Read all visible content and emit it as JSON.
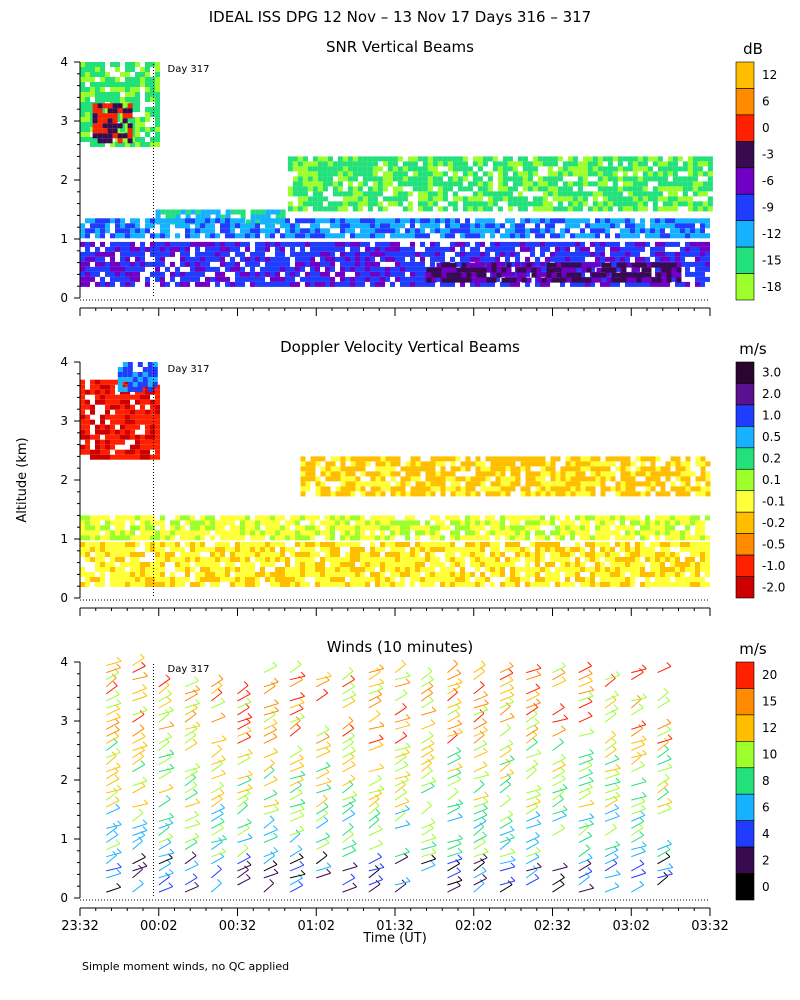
{
  "figure": {
    "title": "IDEAL ISS DPG  12 Nov – 13 Nov 17 Days 316 – 317",
    "y_axis_label": "Altitude (km)",
    "x_axis_label": "Time (UT)",
    "footnote": "Simple moment winds, no QC applied",
    "day_marker_label": "Day 317"
  },
  "chart_data": [
    {
      "type": "heatmap",
      "title": "SNR Vertical Beams",
      "ylabel": "",
      "xlabel": "",
      "ylim": [
        0,
        4
      ],
      "y_ticks": [
        "0",
        "1",
        "2",
        "3",
        "4"
      ],
      "x_ticks": [],
      "day_marker_time": "00:00",
      "colorbar": {
        "unit": "dB",
        "labels": [
          "12",
          "6",
          "0",
          "-3",
          "-6",
          "-9",
          "-12",
          "-15",
          "-18"
        ],
        "colors": [
          "#ffbf00",
          "#ff8c00",
          "#ff2000",
          "#3a0a50",
          "#6f00c4",
          "#1f3cff",
          "#17b2ff",
          "#22e07a",
          "#9cff2c"
        ]
      },
      "regions": [
        {
          "t0": 0.0,
          "t1": 0.12,
          "z0": 2.6,
          "z1": 4.0,
          "level": "-15"
        },
        {
          "t0": 0.02,
          "t1": 0.08,
          "z0": 2.7,
          "z1": 3.3,
          "level": "-3"
        },
        {
          "t0": 0.12,
          "t1": 0.33,
          "z0": 1.3,
          "z1": 1.5,
          "level": "-15"
        },
        {
          "t0": 0.33,
          "t1": 1.0,
          "z0": 1.5,
          "z1": 2.4,
          "level": "-15"
        },
        {
          "t0": 0.0,
          "t1": 1.0,
          "z0": 1.05,
          "z1": 1.35,
          "level": "-12"
        },
        {
          "t0": 0.0,
          "t1": 1.0,
          "z0": 0.25,
          "z1": 0.95,
          "level": "-9"
        },
        {
          "t0": 0.55,
          "t1": 0.95,
          "z0": 0.3,
          "z1": 0.6,
          "level": "-3"
        }
      ]
    },
    {
      "type": "heatmap",
      "title": "Doppler Velocity Vertical Beams",
      "ylabel": "Altitude (km)",
      "xlabel": "",
      "ylim": [
        0,
        4
      ],
      "y_ticks": [
        "0",
        "1",
        "2",
        "3",
        "4"
      ],
      "x_ticks": [],
      "day_marker_time": "00:00",
      "colorbar": {
        "unit": "m/s",
        "labels": [
          "3.0",
          "2.0",
          "1.0",
          "0.5",
          "0.2",
          "0.1",
          "-0.1",
          "-0.2",
          "-0.5",
          "-1.0",
          "-2.0"
        ],
        "colors": [
          "#2b0530",
          "#5a1090",
          "#1f3cff",
          "#17b2ff",
          "#22e07a",
          "#9cff2c",
          "#ffff3a",
          "#ffbf00",
          "#ff8c00",
          "#ff2000",
          "#cc0000"
        ]
      },
      "regions": [
        {
          "t0": 0.0,
          "t1": 0.12,
          "z0": 2.4,
          "z1": 3.7,
          "level": "-1.0"
        },
        {
          "t0": 0.06,
          "t1": 0.12,
          "z0": 3.5,
          "z1": 4.0,
          "level": "1.0"
        },
        {
          "t0": 0.35,
          "t1": 1.0,
          "z0": 1.8,
          "z1": 2.4,
          "level": "-0.2"
        },
        {
          "t0": 0.0,
          "t1": 1.0,
          "z0": 1.0,
          "z1": 1.4,
          "level": "-0.1"
        },
        {
          "t0": 0.0,
          "t1": 1.0,
          "z0": 0.25,
          "z1": 0.95,
          "level": "-0.1"
        }
      ]
    },
    {
      "type": "scatter",
      "title": "Winds (10 minutes)",
      "ylabel": "",
      "xlabel": "Time (UT)",
      "ylim": [
        0,
        4
      ],
      "y_ticks": [
        "0",
        "1",
        "2",
        "3",
        "4"
      ],
      "x_ticks": [
        "23:32",
        "00:02",
        "00:32",
        "01:02",
        "01:32",
        "02:02",
        "02:32",
        "03:02",
        "03:32"
      ],
      "day_marker_time": "00:00",
      "colorbar": {
        "unit": "m/s",
        "labels": [
          "20",
          "15",
          "12",
          "10",
          "8",
          "6",
          "4",
          "2",
          "0"
        ],
        "colors": [
          "#ff2000",
          "#ff8c00",
          "#ffbf00",
          "#9cff2c",
          "#22e07a",
          "#17b2ff",
          "#1f3cff",
          "#3a0a50",
          "#000000"
        ]
      },
      "wind_profiles_minutes_after_2332": [
        10,
        20,
        30,
        40,
        50,
        60,
        70,
        80,
        90,
        100,
        110,
        120,
        130,
        140,
        150,
        160,
        170,
        180,
        190,
        200,
        210,
        220
      ]
    }
  ]
}
